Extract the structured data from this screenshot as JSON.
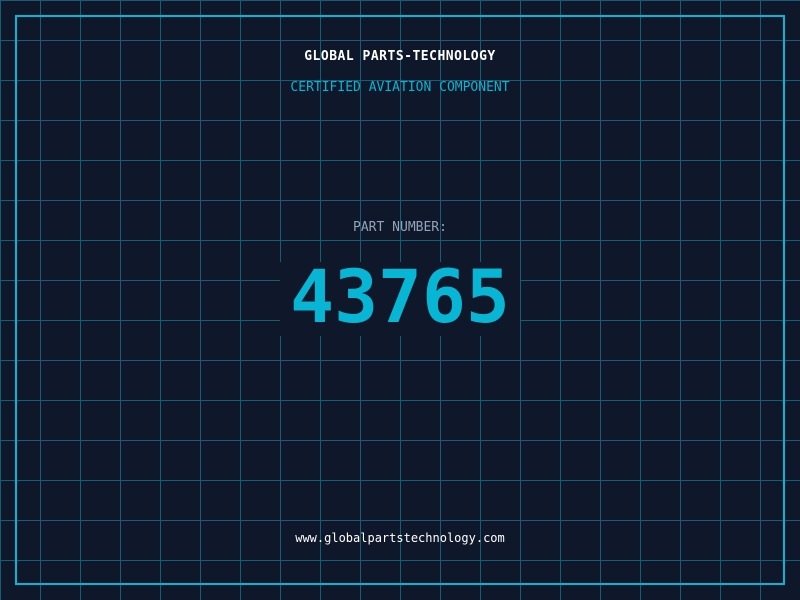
{
  "header": {
    "title": "GLOBAL PARTS-TECHNOLOGY",
    "subtitle": "CERTIFIED AVIATION COMPONENT"
  },
  "part": {
    "label": "PART NUMBER:",
    "number": "43765"
  },
  "footer": {
    "url": "www.globalpartstechnology.com"
  },
  "colors": {
    "background": "#0f172a",
    "accent": "#06b6d4",
    "grid": "#155e75",
    "label": "#94a3b8"
  }
}
